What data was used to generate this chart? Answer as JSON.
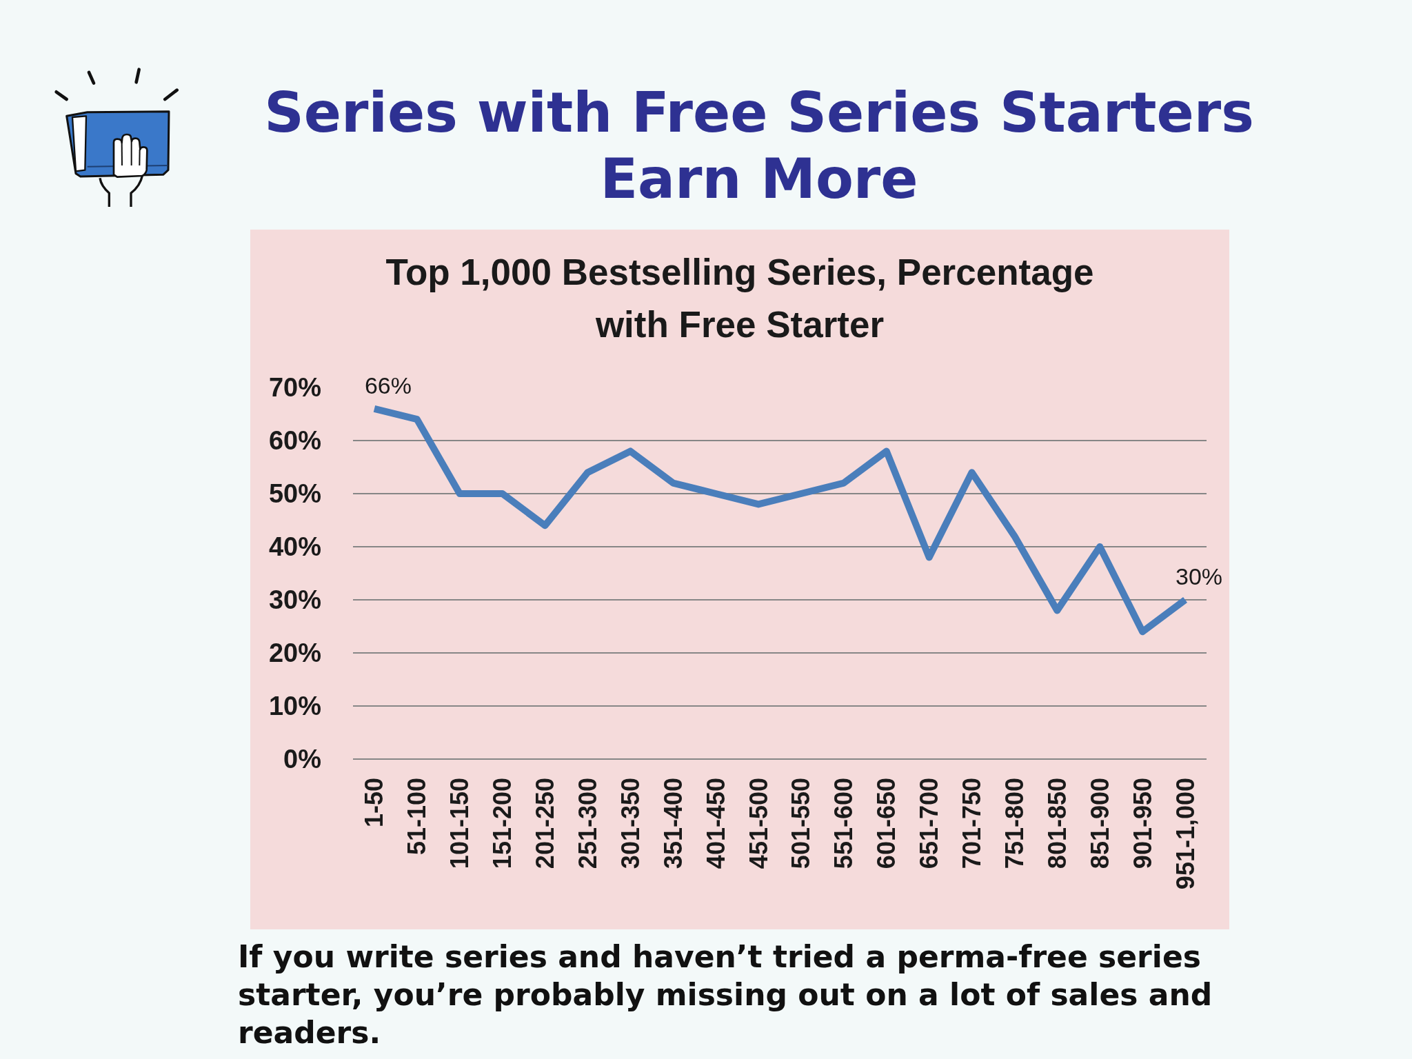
{
  "chart_data": {
    "type": "line",
    "title": "Series with Free Series Starters Earn More",
    "subtitle": "Top 1,000 Bestselling Series, Percentage with Free Starter",
    "categories": [
      "1-50",
      "51-100",
      "101-150",
      "151-200",
      "201-250",
      "251-300",
      "301-350",
      "351-400",
      "401-450",
      "451-500",
      "501-550",
      "551-600",
      "601-650",
      "651-700",
      "701-750",
      "751-800",
      "801-850",
      "851-900",
      "901-950",
      "951-1,000"
    ],
    "values": [
      66,
      64,
      50,
      50,
      44,
      54,
      58,
      52,
      50,
      48,
      50,
      52,
      58,
      38,
      54,
      42,
      28,
      40,
      24,
      30
    ],
    "value_labels": [
      "66%",
      null,
      null,
      null,
      null,
      null,
      null,
      null,
      null,
      null,
      null,
      null,
      null,
      null,
      null,
      null,
      null,
      null,
      null,
      "30%"
    ],
    "color": "#4a7ebb",
    "ylim": [
      0,
      70
    ],
    "yticks": [
      {
        "value": 0,
        "label": "0%"
      },
      {
        "value": 10,
        "label": "10%"
      },
      {
        "value": 20,
        "label": "20%"
      },
      {
        "value": 30,
        "label": "30%"
      },
      {
        "value": 40,
        "label": "40%"
      },
      {
        "value": 50,
        "label": "50%"
      },
      {
        "value": 60,
        "label": "60%"
      },
      {
        "value": 70,
        "label": "70%"
      }
    ],
    "grid": "y",
    "annotations": [
      "If you write series and haven’t tried a perma-free series starter, you’re probably missing out on a lot of sales and readers."
    ]
  }
}
